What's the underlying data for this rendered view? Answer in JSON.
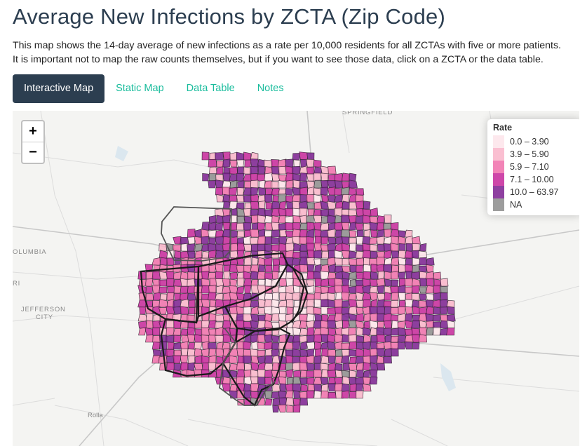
{
  "title": "Average New Infections by ZCTA (Zip Code)",
  "description": [
    "This map shows the 14-day average of new infections as a rate per 10,000 residents for all ZCTAs with five or more patients.",
    "It is important not to map the raw counts themselves, but if you want to see those data, click on a ZCTA or the data table."
  ],
  "tabs": [
    {
      "label": "Interactive Map",
      "active": true
    },
    {
      "label": "Static Map",
      "active": false
    },
    {
      "label": "Data Table",
      "active": false
    },
    {
      "label": "Notes",
      "active": false
    }
  ],
  "zoom": {
    "in_label": "+",
    "out_label": "−"
  },
  "legend": {
    "title": "Rate",
    "items": [
      {
        "label": "0.0 – 3.90",
        "color": "#fde4ea"
      },
      {
        "label": "3.9 – 5.90",
        "color": "#f9b4c9"
      },
      {
        "label": "5.9 – 7.10",
        "color": "#f06eaa"
      },
      {
        "label": "7.1 – 10.00",
        "color": "#c5279a"
      },
      {
        "label": "10.0 – 63.97",
        "color": "#7a1f8f"
      },
      {
        "label": "NA",
        "color": "#8c8c8c"
      }
    ]
  },
  "places": {
    "springfield": "SPRINGFIELD",
    "columbia": "OLUMBIA",
    "ri": "RI",
    "jefferson1": "JEFFERSON",
    "jefferson2": "CITY",
    "rolla": "Rolla"
  }
}
